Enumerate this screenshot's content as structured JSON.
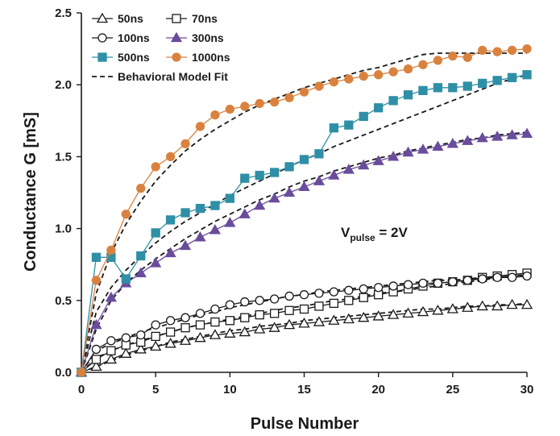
{
  "chart_data": {
    "type": "line",
    "xlabel": "Pulse Number",
    "ylabel": "Conductance G [mS]",
    "xlim": [
      0,
      30
    ],
    "ylim": [
      0,
      2.5
    ],
    "x_ticks": [
      "0",
      "5",
      "10",
      "15",
      "20",
      "25",
      "30"
    ],
    "y_ticks": [
      "0.0",
      "0.5",
      "1.0",
      "1.5",
      "2.0",
      "2.5"
    ],
    "grid": false,
    "legend_position": "top-left",
    "annotation": {
      "main": "V",
      "sub": "pulse",
      "rest": " = 2V"
    },
    "fit_label": "Behavioral Model Fit",
    "x": [
      0,
      1,
      2,
      3,
      4,
      5,
      6,
      7,
      8,
      9,
      10,
      11,
      12,
      13,
      14,
      15,
      16,
      17,
      18,
      19,
      20,
      21,
      22,
      23,
      24,
      25,
      26,
      27,
      28,
      29,
      30
    ],
    "series": [
      {
        "name": "50ns",
        "marker": "triangle-open",
        "color": "#1a1a1a",
        "values": [
          0.0,
          0.04,
          0.09,
          0.13,
          0.16,
          0.18,
          0.2,
          0.22,
          0.24,
          0.26,
          0.27,
          0.28,
          0.3,
          0.31,
          0.33,
          0.34,
          0.35,
          0.36,
          0.37,
          0.38,
          0.39,
          0.4,
          0.41,
          0.42,
          0.43,
          0.44,
          0.45,
          0.46,
          0.46,
          0.47,
          0.47
        ]
      },
      {
        "name": "70ns",
        "marker": "square-open",
        "color": "#1a1a1a",
        "values": [
          0.0,
          0.09,
          0.15,
          0.19,
          0.21,
          0.25,
          0.28,
          0.31,
          0.33,
          0.35,
          0.36,
          0.38,
          0.4,
          0.41,
          0.43,
          0.44,
          0.46,
          0.48,
          0.5,
          0.52,
          0.54,
          0.56,
          0.58,
          0.6,
          0.62,
          0.63,
          0.64,
          0.66,
          0.67,
          0.68,
          0.69
        ]
      },
      {
        "name": "100ns",
        "marker": "circle-open",
        "color": "#1a1a1a",
        "values": [
          0.0,
          0.16,
          0.22,
          0.24,
          0.26,
          0.33,
          0.36,
          0.38,
          0.41,
          0.44,
          0.47,
          0.49,
          0.5,
          0.51,
          0.53,
          0.54,
          0.55,
          0.56,
          0.57,
          0.58,
          0.59,
          0.6,
          0.61,
          0.62,
          0.62,
          0.63,
          0.64,
          0.65,
          0.66,
          0.66,
          0.67
        ]
      },
      {
        "name": "300ns",
        "marker": "triangle-filled",
        "color": "#6a4c9c",
        "values": [
          0.0,
          0.33,
          0.52,
          0.62,
          0.69,
          0.76,
          0.83,
          0.88,
          0.94,
          0.99,
          1.04,
          1.1,
          1.16,
          1.21,
          1.25,
          1.29,
          1.33,
          1.37,
          1.41,
          1.44,
          1.47,
          1.5,
          1.53,
          1.55,
          1.57,
          1.59,
          1.61,
          1.63,
          1.64,
          1.65,
          1.66
        ]
      },
      {
        "name": "500ns",
        "marker": "square-filled",
        "color": "#2f8fa6",
        "values": [
          0.0,
          0.8,
          0.8,
          0.65,
          0.81,
          0.97,
          1.06,
          1.11,
          1.14,
          1.16,
          1.21,
          1.35,
          1.37,
          1.39,
          1.43,
          1.48,
          1.52,
          1.7,
          1.72,
          1.78,
          1.84,
          1.89,
          1.93,
          1.96,
          1.98,
          1.98,
          1.99,
          2.01,
          2.03,
          2.05,
          2.07
        ]
      },
      {
        "name": "1000ns",
        "marker": "circle-filled",
        "color": "#d9823f",
        "values": [
          0.0,
          0.64,
          0.85,
          1.1,
          1.28,
          1.43,
          1.5,
          1.59,
          1.71,
          1.79,
          1.83,
          1.85,
          1.87,
          1.88,
          1.91,
          1.95,
          1.99,
          2.02,
          2.04,
          2.06,
          2.07,
          2.09,
          2.11,
          2.14,
          2.17,
          2.2,
          2.19,
          2.24,
          2.23,
          2.24,
          2.25
        ]
      }
    ],
    "fits": [
      {
        "values": [
          0.0,
          0.04,
          0.08,
          0.12,
          0.15,
          0.18,
          0.21,
          0.23,
          0.25,
          0.27,
          0.29,
          0.3,
          0.32,
          0.33,
          0.34,
          0.36,
          0.37,
          0.38,
          0.39,
          0.4,
          0.41,
          0.42,
          0.43,
          0.44,
          0.44,
          0.45,
          0.46,
          0.46,
          0.47,
          0.47,
          0.48
        ]
      },
      {
        "values": [
          0.0,
          0.1,
          0.15,
          0.19,
          0.22,
          0.25,
          0.28,
          0.31,
          0.33,
          0.35,
          0.37,
          0.39,
          0.41,
          0.43,
          0.45,
          0.46,
          0.48,
          0.5,
          0.51,
          0.53,
          0.55,
          0.56,
          0.57,
          0.59,
          0.6,
          0.62,
          0.63,
          0.64,
          0.66,
          0.67,
          0.68
        ]
      },
      {
        "values": [
          0.0,
          0.15,
          0.2,
          0.24,
          0.28,
          0.31,
          0.34,
          0.37,
          0.4,
          0.42,
          0.45,
          0.47,
          0.49,
          0.51,
          0.53,
          0.54,
          0.56,
          0.57,
          0.58,
          0.59,
          0.6,
          0.61,
          0.62,
          0.63,
          0.64,
          0.64,
          0.65,
          0.66,
          0.66,
          0.67,
          0.67
        ]
      },
      {
        "values": [
          0.0,
          0.3,
          0.5,
          0.62,
          0.71,
          0.79,
          0.86,
          0.93,
          0.99,
          1.05,
          1.1,
          1.15,
          1.2,
          1.24,
          1.29,
          1.33,
          1.36,
          1.4,
          1.43,
          1.46,
          1.49,
          1.51,
          1.54,
          1.56,
          1.58,
          1.6,
          1.62,
          1.63,
          1.65,
          1.66,
          1.67
        ]
      },
      {
        "values": [
          0.0,
          0.42,
          0.59,
          0.71,
          0.81,
          0.9,
          0.98,
          1.05,
          1.11,
          1.17,
          1.23,
          1.28,
          1.33,
          1.38,
          1.43,
          1.48,
          1.52,
          1.57,
          1.61,
          1.65,
          1.69,
          1.73,
          1.77,
          1.81,
          1.85,
          1.89,
          1.93,
          1.97,
          2.01,
          2.04,
          2.07
        ]
      },
      {
        "values": [
          0.0,
          0.55,
          0.83,
          1.03,
          1.19,
          1.33,
          1.44,
          1.54,
          1.62,
          1.69,
          1.75,
          1.81,
          1.86,
          1.9,
          1.94,
          1.98,
          2.01,
          2.04,
          2.07,
          2.1,
          2.12,
          2.15,
          2.18,
          2.21,
          2.22,
          2.22,
          2.22,
          2.22,
          2.22,
          2.22,
          2.22
        ]
      }
    ]
  }
}
